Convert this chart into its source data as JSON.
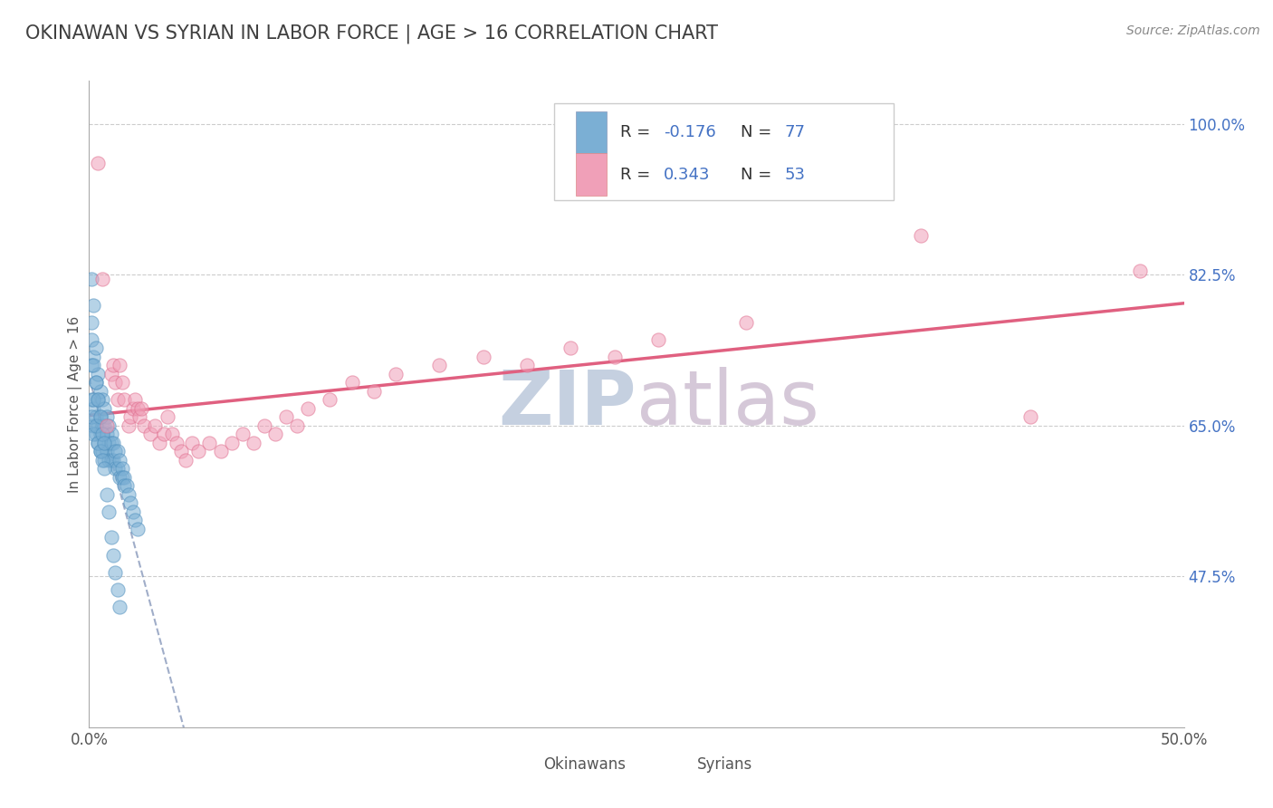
{
  "title": "OKINAWAN VS SYRIAN IN LABOR FORCE | AGE > 16 CORRELATION CHART",
  "source": "Source: ZipAtlas.com",
  "ylabel": "In Labor Force | Age > 16",
  "xlim": [
    0.0,
    0.5
  ],
  "ylim": [
    0.3,
    1.05
  ],
  "xticks": [
    0.0,
    0.1,
    0.2,
    0.3,
    0.4,
    0.5
  ],
  "xticklabels": [
    "0.0%",
    "",
    "",
    "",
    "",
    "50.0%"
  ],
  "ytick_positions": [
    0.475,
    0.65,
    0.825,
    1.0
  ],
  "yticklabels": [
    "47.5%",
    "65.0%",
    "82.5%",
    "100.0%"
  ],
  "okinawan_color": "#7bafd4",
  "syrian_color": "#f0a0b8",
  "okinawan_edge_color": "#5090be",
  "syrian_edge_color": "#e07090",
  "okinawan_line_color": "#8899bb",
  "syrian_line_color": "#e06080",
  "blue_text_color": "#4472c4",
  "title_color": "#404040",
  "watermark_color_zip": "#c8d4e8",
  "watermark_color_atlas": "#d8c8d8",
  "grid_color": "#cccccc",
  "background_color": "#ffffff",
  "okinawan_x": [
    0.001,
    0.001,
    0.001,
    0.002,
    0.002,
    0.002,
    0.002,
    0.003,
    0.003,
    0.003,
    0.003,
    0.004,
    0.004,
    0.004,
    0.004,
    0.005,
    0.005,
    0.005,
    0.005,
    0.006,
    0.006,
    0.006,
    0.006,
    0.007,
    0.007,
    0.007,
    0.007,
    0.008,
    0.008,
    0.008,
    0.009,
    0.009,
    0.009,
    0.01,
    0.01,
    0.01,
    0.011,
    0.011,
    0.012,
    0.012,
    0.013,
    0.013,
    0.014,
    0.014,
    0.015,
    0.015,
    0.016,
    0.016,
    0.017,
    0.018,
    0.019,
    0.02,
    0.021,
    0.022,
    0.001,
    0.001,
    0.001,
    0.002,
    0.002,
    0.002,
    0.003,
    0.003,
    0.004,
    0.004,
    0.005,
    0.005,
    0.006,
    0.006,
    0.007,
    0.007,
    0.008,
    0.009,
    0.01,
    0.011,
    0.012,
    0.013,
    0.014
  ],
  "okinawan_y": [
    0.82,
    0.75,
    0.68,
    0.79,
    0.73,
    0.67,
    0.65,
    0.74,
    0.7,
    0.66,
    0.64,
    0.71,
    0.68,
    0.65,
    0.63,
    0.69,
    0.66,
    0.64,
    0.62,
    0.68,
    0.65,
    0.64,
    0.62,
    0.67,
    0.65,
    0.63,
    0.61,
    0.66,
    0.64,
    0.62,
    0.65,
    0.63,
    0.61,
    0.64,
    0.63,
    0.61,
    0.63,
    0.61,
    0.62,
    0.6,
    0.62,
    0.6,
    0.61,
    0.59,
    0.6,
    0.59,
    0.59,
    0.58,
    0.58,
    0.57,
    0.56,
    0.55,
    0.54,
    0.53,
    0.77,
    0.72,
    0.66,
    0.72,
    0.68,
    0.64,
    0.7,
    0.65,
    0.68,
    0.63,
    0.66,
    0.62,
    0.64,
    0.61,
    0.63,
    0.6,
    0.57,
    0.55,
    0.52,
    0.5,
    0.48,
    0.46,
    0.44
  ],
  "syrian_x": [
    0.004,
    0.006,
    0.008,
    0.01,
    0.011,
    0.012,
    0.013,
    0.014,
    0.015,
    0.016,
    0.018,
    0.019,
    0.02,
    0.021,
    0.022,
    0.023,
    0.024,
    0.025,
    0.028,
    0.03,
    0.032,
    0.034,
    0.036,
    0.038,
    0.04,
    0.042,
    0.044,
    0.047,
    0.05,
    0.055,
    0.06,
    0.065,
    0.07,
    0.075,
    0.08,
    0.085,
    0.09,
    0.095,
    0.1,
    0.11,
    0.12,
    0.13,
    0.14,
    0.16,
    0.18,
    0.2,
    0.22,
    0.24,
    0.26,
    0.3,
    0.38,
    0.43,
    0.48
  ],
  "syrian_y": [
    0.955,
    0.82,
    0.65,
    0.71,
    0.72,
    0.7,
    0.68,
    0.72,
    0.7,
    0.68,
    0.65,
    0.66,
    0.67,
    0.68,
    0.67,
    0.66,
    0.67,
    0.65,
    0.64,
    0.65,
    0.63,
    0.64,
    0.66,
    0.64,
    0.63,
    0.62,
    0.61,
    0.63,
    0.62,
    0.63,
    0.62,
    0.63,
    0.64,
    0.63,
    0.65,
    0.64,
    0.66,
    0.65,
    0.67,
    0.68,
    0.7,
    0.69,
    0.71,
    0.72,
    0.73,
    0.72,
    0.74,
    0.73,
    0.75,
    0.77,
    0.87,
    0.66,
    0.83
  ]
}
